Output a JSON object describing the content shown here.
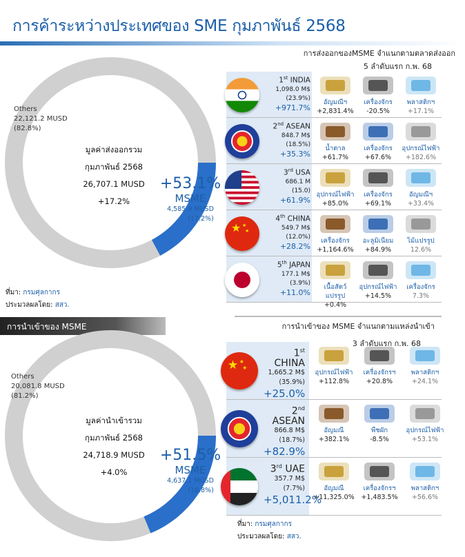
{
  "title": "การค้าระหว่างประเทศของ SME กุมภาพันธ์ 2568",
  "export": {
    "panel_title_1": "การส่งออกของMSME จำแนกตามตลาดส่งออก",
    "panel_title_2": "5 ลำดับแรก ก.พ. 68",
    "others_label": "Others",
    "others_value": "22,121.2 MUSD",
    "others_pct": "(82.8%)",
    "center_1": "มูลค่าส่งออกรวม",
    "center_2": "กุมภาพันธ์ 2568",
    "center_3": "26,707.1  MUSD",
    "center_4": "+17.2%",
    "msme_growth": "+53.1%",
    "msme_label": "MSME",
    "msme_value": "4,585.9 MUSD",
    "msme_pct": "(17.2%)",
    "source_label": "ที่มา:",
    "source_value": "กรมศุลกากร",
    "proc_label": "ประมวลผลโดย:",
    "proc_value": "สสว.",
    "rows": [
      {
        "rank": "1",
        "sup": "st",
        "name": "INDIA",
        "value": "1,098.0 M$",
        "share": "(23.9%)",
        "growth": "+971.7%",
        "products": [
          {
            "n": "อัญมณีฯ",
            "g": "+2,831.4%"
          },
          {
            "n": "เครื่องจักร",
            "g": "-20.5%"
          },
          {
            "n": "พลาสติกฯ",
            "g": "+17.1%"
          }
        ]
      },
      {
        "rank": "2",
        "sup": "nd",
        "name": "ASEAN",
        "value": "848.7 M$",
        "share": "(18.5%)",
        "growth": "+35.3%",
        "products": [
          {
            "n": "น้ำตาล",
            "g": "+61.7%"
          },
          {
            "n": "เครื่องจักร",
            "g": "+67.6%"
          },
          {
            "n": "อุปกรณ์ไฟฟ้า",
            "g": "+182.6%"
          }
        ]
      },
      {
        "rank": "3",
        "sup": "rd",
        "name": "USA",
        "value": "686.1 M",
        "share": "(15.0)",
        "growth": "+61.9%",
        "products": [
          {
            "n": "อุปกรณ์ไฟฟ้า",
            "g": "+85.0%"
          },
          {
            "n": "เครื่องจักร",
            "g": "+69.1%"
          },
          {
            "n": "อัญมณีฯ",
            "g": "+33.4%"
          }
        ]
      },
      {
        "rank": "4",
        "sup": "th",
        "name": "CHINA",
        "value": "549.7 M$",
        "share": "(12.0%)",
        "growth": "+28.2%",
        "products": [
          {
            "n": "เครื่องจักร",
            "g": "+1,164.6%"
          },
          {
            "n": "อะลูมิเนียม",
            "g": "+84.9%"
          },
          {
            "n": "ไม้แปรรูป",
            "g": "12.6%"
          }
        ]
      },
      {
        "rank": "5",
        "sup": "th",
        "name": "JAPAN",
        "value": "177.1 M$",
        "share": "(3.9%)",
        "growth": "+11.0%",
        "products": [
          {
            "n": "เนื้อสัตว์แปรรูป",
            "g": "+0.4%"
          },
          {
            "n": "อุปกรณ์ไฟฟ้า",
            "g": "+14.5%"
          },
          {
            "n": "เครื่องจักร",
            "g": "7.3%"
          }
        ]
      }
    ]
  },
  "import": {
    "bar_label": "การนำเข้าของ MSME",
    "panel_title_1": "การนำเข้าของ MSME จำแนกตามแหล่งนำเข้า",
    "panel_title_2": "3 ลำดับแรก ก.พ. 68",
    "others_label": "Others",
    "others_value": "20,081.8 MUSD",
    "others_pct": "(81.2%)",
    "center_1": "มูลค่านำเข้ารวม",
    "center_2": "กุมภาพันธ์ 2568",
    "center_3": "24,718.9  MUSD",
    "center_4": "+4.0%",
    "msme_growth": "+51.5%",
    "msme_label": "MSME",
    "msme_value": "4,637.1 MUSD",
    "msme_pct": "(18.8%)",
    "source_label": "ที่มา:",
    "source_value": "กรมศุลกากร",
    "proc_label": "ประมวลผลโดย:",
    "proc_value": "สสว.",
    "rows": [
      {
        "rank": "1",
        "sup": "st",
        "name": "CHINA",
        "value": "1,665.2 M$",
        "share": "(35.9%)",
        "growth": "+25.0%",
        "products": [
          {
            "n": "อุปกรณ์ไฟฟ้า",
            "g": "+112.8%"
          },
          {
            "n": "เครื่องจักรฯ",
            "g": "+20.8%"
          },
          {
            "n": "พลาสติกฯ",
            "g": "+24.1%"
          }
        ]
      },
      {
        "rank": "2",
        "sup": "nd",
        "name": "ASEAN",
        "value": "866.8 M$",
        "share": "(18.7%)",
        "growth": "+82.9%",
        "products": [
          {
            "n": "อัญมณี",
            "g": "+382.1%"
          },
          {
            "n": "พืชผัก",
            "g": "-8.5%"
          },
          {
            "n": "อุปกรณ์ไฟฟ้า",
            "g": "+53.1%"
          }
        ]
      },
      {
        "rank": "3",
        "sup": "rd",
        "name": "UAE",
        "value": "357.7 M$",
        "share": "(7.7%)",
        "growth": "+5,011.2%",
        "products": [
          {
            "n": "อัญมณี",
            "g": "+11,325.0%"
          },
          {
            "n": "เครื่องจักรฯ",
            "g": "+1,483.5%"
          },
          {
            "n": "พลาสติกฯ",
            "g": "+56.6%"
          }
        ]
      }
    ]
  },
  "colors": {
    "msme": "#2a6fc9",
    "others": "#d0d0d0",
    "title": "#1c5fa8"
  },
  "chart_data": [
    {
      "type": "pie",
      "categories": [
        "Others",
        "MSME"
      ],
      "values": [
        22121.2,
        4585.9
      ],
      "shares": [
        82.8,
        17.2
      ]
    },
    {
      "type": "pie",
      "categories": [
        "Others",
        "MSME"
      ],
      "values": [
        20081.8,
        4637.1
      ],
      "shares": [
        81.2,
        18.8
      ]
    },
    {
      "type": "bar",
      "categories": [
        "INDIA",
        "ASEAN",
        "USA",
        "CHINA",
        "JAPAN"
      ],
      "values": [
        1098.0,
        848.7,
        686.1,
        549.7,
        177.1
      ]
    },
    {
      "type": "bar",
      "categories": [
        "CHINA",
        "ASEAN",
        "UAE"
      ],
      "values": [
        1665.2,
        866.8,
        357.7
      ]
    }
  ]
}
